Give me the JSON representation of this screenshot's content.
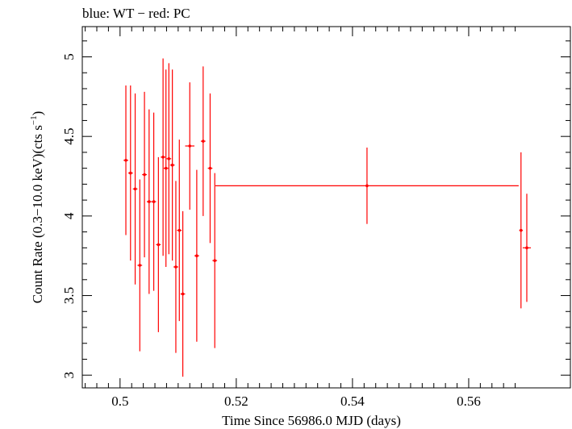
{
  "chart_data": {
    "type": "scatter",
    "title": "blue: WT − red: PC",
    "xlabel": "Time Since 56986.0 MJD (days)",
    "ylabel_main": "Count Rate (0.3−10.0 keV)(cts s",
    "ylabel_sup": "−1",
    "ylabel_close": ")",
    "xlim": [
      0.4935,
      0.5775
    ],
    "ylim": [
      2.92,
      5.19
    ],
    "grid": false,
    "legend": "none",
    "x_ticks": [
      {
        "value": 0.5,
        "label": "0.5"
      },
      {
        "value": 0.52,
        "label": "0.52"
      },
      {
        "value": 0.54,
        "label": "0.54"
      },
      {
        "value": 0.56,
        "label": "0.56"
      }
    ],
    "y_ticks": [
      {
        "value": 3,
        "label": "3"
      },
      {
        "value": 3.5,
        "label": "3.5"
      },
      {
        "value": 4,
        "label": "4"
      },
      {
        "value": 4.5,
        "label": "4.5"
      },
      {
        "value": 5,
        "label": "5"
      }
    ],
    "series": [
      {
        "name": "PC",
        "color": "#ff0000",
        "points": [
          {
            "x": 0.501,
            "y": 4.35,
            "xerr": 0.0004,
            "yerr": 0.47
          },
          {
            "x": 0.5018,
            "y": 4.27,
            "xerr": 0.0004,
            "yerr": 0.55
          },
          {
            "x": 0.5026,
            "y": 4.17,
            "xerr": 0.0004,
            "yerr": 0.6
          },
          {
            "x": 0.5034,
            "y": 3.69,
            "xerr": 0.0004,
            "yerr": 0.54
          },
          {
            "x": 0.5042,
            "y": 4.26,
            "xerr": 0.0004,
            "yerr": 0.52
          },
          {
            "x": 0.505,
            "y": 4.09,
            "xerr": 0.0004,
            "yerr": 0.58
          },
          {
            "x": 0.5058,
            "y": 4.09,
            "xerr": 0.0004,
            "yerr": 0.56
          },
          {
            "x": 0.5066,
            "y": 3.82,
            "xerr": 0.0004,
            "yerr": 0.55
          },
          {
            "x": 0.5074,
            "y": 4.37,
            "xerr": 0.0004,
            "yerr": 0.62
          },
          {
            "x": 0.5079,
            "y": 4.3,
            "xerr": 0.0004,
            "yerr": 0.62
          },
          {
            "x": 0.5084,
            "y": 4.36,
            "xerr": 0.0004,
            "yerr": 0.6
          },
          {
            "x": 0.509,
            "y": 4.32,
            "xerr": 0.0004,
            "yerr": 0.6
          },
          {
            "x": 0.5096,
            "y": 3.68,
            "xerr": 0.0004,
            "yerr": 0.54
          },
          {
            "x": 0.5102,
            "y": 3.91,
            "xerr": 0.0004,
            "yerr": 0.57
          },
          {
            "x": 0.5108,
            "y": 3.51,
            "xerr": 0.0004,
            "yerr": 0.52
          },
          {
            "x": 0.512,
            "y": 4.44,
            "xerr": 0.0008,
            "yerr": 0.4
          },
          {
            "x": 0.5132,
            "y": 3.75,
            "xerr": 0.0004,
            "yerr": 0.54
          },
          {
            "x": 0.5143,
            "y": 4.47,
            "xerr": 0.0004,
            "yerr": 0.47
          },
          {
            "x": 0.5155,
            "y": 4.3,
            "xerr": 0.0004,
            "yerr": 0.47
          },
          {
            "x": 0.5163,
            "y": 3.72,
            "xerr": 0.0004,
            "yerr": 0.55
          },
          {
            "x": 0.5425,
            "y": 4.19,
            "xerr": 0.0261,
            "yerr": 0.24
          },
          {
            "x": 0.569,
            "y": 3.91,
            "xerr": 0.0003,
            "yerr": 0.49
          },
          {
            "x": 0.57,
            "y": 3.8,
            "xerr": 0.0007,
            "yerr": 0.34
          }
        ]
      }
    ]
  }
}
